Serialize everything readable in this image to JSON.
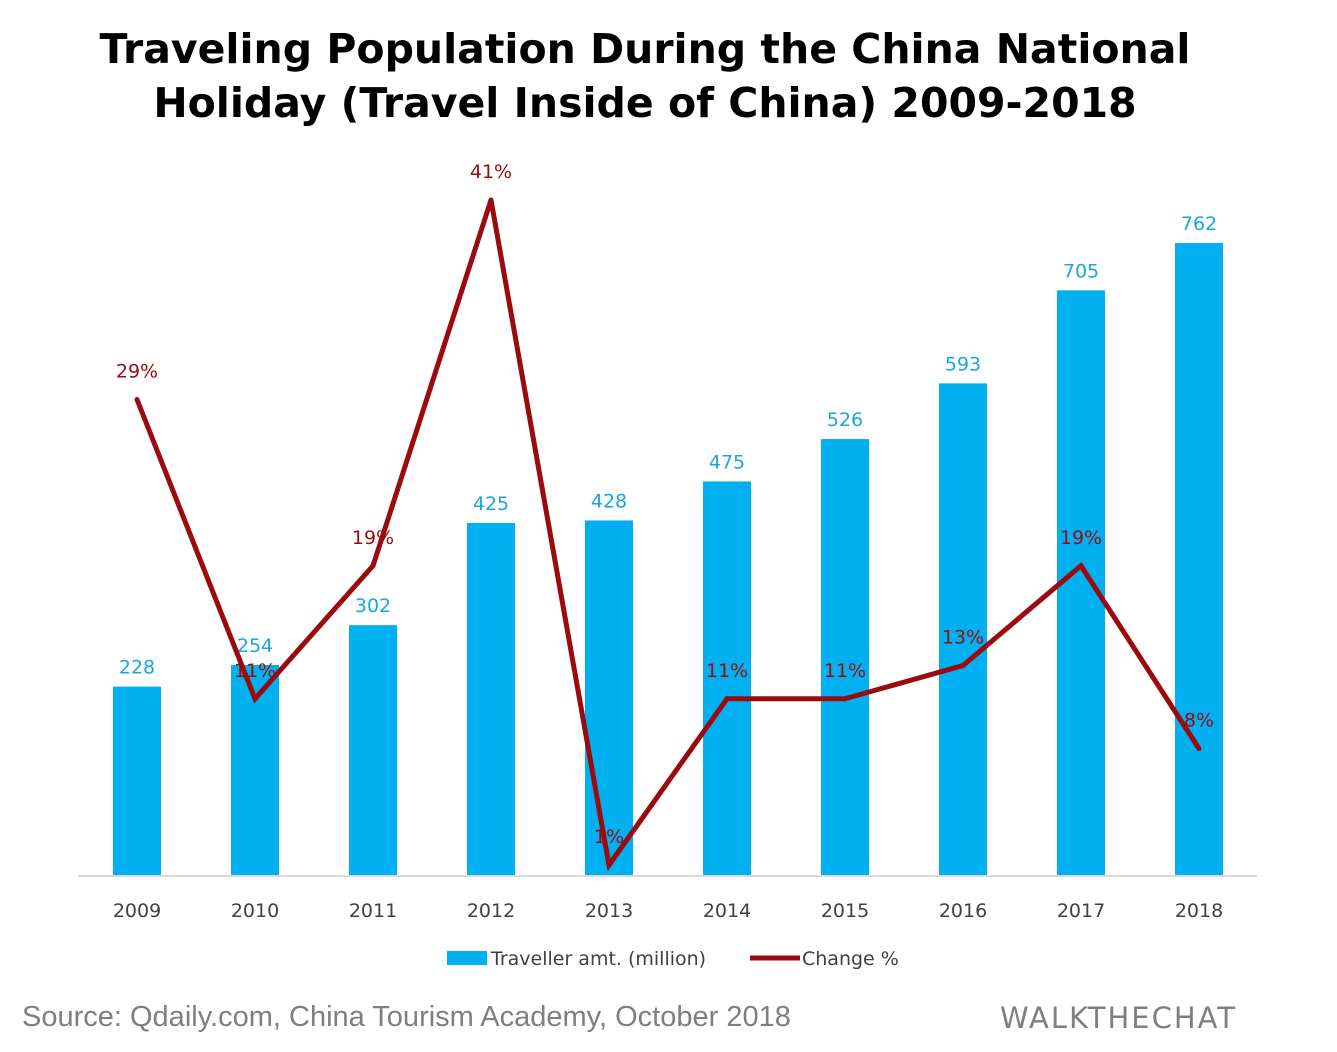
{
  "title": {
    "line1": "Traveling Population During the China National",
    "line2": "Holiday (Travel Inside of China) 2009-2018"
  },
  "footer": {
    "source": "Source: Qdaily.com, China Tourism Academy, October 2018",
    "brand": "WALKTHECHAT"
  },
  "colors": {
    "bar": "#00b0f0",
    "line": "#9b0a0f",
    "bar_label": "#1aa6e0",
    "line_label": "#9b0a0f",
    "axis_text": "#404040"
  },
  "chart_data": {
    "type": "bar",
    "categories": [
      "2009",
      "2010",
      "2011",
      "2012",
      "2013",
      "2014",
      "2015",
      "2016",
      "2017",
      "2018"
    ],
    "series": [
      {
        "name": "Traveller amt. (million)",
        "type": "bar",
        "values": [
          228,
          254,
          302,
          425,
          428,
          475,
          526,
          593,
          705,
          762
        ],
        "labels": [
          "228",
          "254",
          "302",
          "425",
          "428",
          "475",
          "526",
          "593",
          "705",
          "762"
        ],
        "ylim": [
          0,
          800
        ]
      },
      {
        "name": "Change %",
        "type": "line",
        "values": [
          29,
          11,
          19,
          41,
          1,
          11,
          11,
          13,
          19,
          8
        ],
        "labels": [
          "29%",
          "11%",
          "19%",
          "41%",
          "1%",
          "11%",
          "11%",
          "13%",
          "19%",
          "8%"
        ],
        "ylim": [
          0,
          45
        ]
      }
    ],
    "legend": [
      "Traveller amt. (million)",
      "Change %"
    ],
    "legend_position": "bottom",
    "grid": false
  }
}
